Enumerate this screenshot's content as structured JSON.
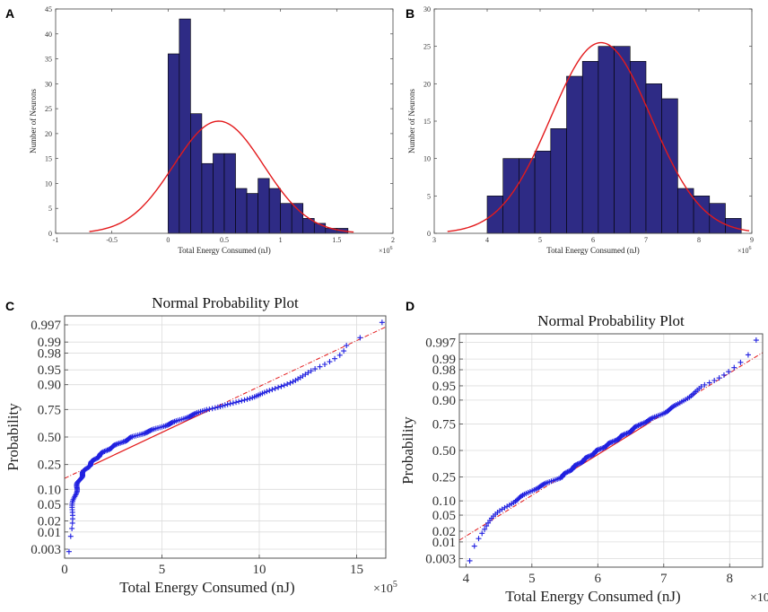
{
  "chart_data": [
    {
      "panel": "A",
      "type": "bar",
      "title": "",
      "xlabel": "Total Energy Consumed (nJ)",
      "ylabel": "Number of Neurons",
      "x_multiplier": "×10",
      "x_multiplier_exp": "6",
      "xlim": [
        -1,
        2
      ],
      "ylim": [
        0,
        45
      ],
      "xticks": [
        -1,
        -0.5,
        0,
        0.5,
        1,
        1.5,
        2
      ],
      "xtick_labels": [
        "-1",
        "-0.5",
        "0",
        "0.5",
        "1",
        "1.5",
        "2"
      ],
      "yticks": [
        0,
        5,
        10,
        15,
        20,
        25,
        30,
        35,
        40,
        45
      ],
      "bin_start": 0.0,
      "bin_width": 0.1,
      "values": [
        36,
        43,
        24,
        14,
        16,
        16,
        9,
        8,
        11,
        9,
        6,
        6,
        3,
        2,
        1,
        1
      ],
      "fit": {
        "type": "normal",
        "mean": 0.45,
        "std": 0.4,
        "peak": 22.5,
        "x_range": [
          -0.7,
          1.65
        ]
      },
      "colors": {
        "bar": "#2e2b85",
        "bar_edge": "#000000",
        "fit": "#e31a1c"
      }
    },
    {
      "panel": "B",
      "type": "bar",
      "title": "",
      "xlabel": "Total Energy Consumed (nJ)",
      "ylabel": "Number of Neurons",
      "x_multiplier": "×10",
      "x_multiplier_exp": "6",
      "xlim": [
        3,
        9
      ],
      "ylim": [
        0,
        30
      ],
      "xticks": [
        3,
        4,
        5,
        6,
        7,
        8,
        9
      ],
      "xtick_labels": [
        "3",
        "4",
        "5",
        "6",
        "7",
        "8",
        "9"
      ],
      "yticks": [
        0,
        5,
        10,
        15,
        20,
        25,
        30
      ],
      "bin_start": 4.0,
      "bin_width": 0.3,
      "values": [
        5,
        10,
        10,
        11,
        14,
        21,
        23,
        25,
        25,
        23,
        20,
        18,
        6,
        5,
        4,
        2
      ],
      "fit": {
        "type": "normal",
        "mean": 6.15,
        "std": 0.95,
        "peak": 25.5,
        "x_range": [
          3.25,
          8.95
        ]
      },
      "colors": {
        "bar": "#2e2b85",
        "bar_edge": "#000000",
        "fit": "#e31a1c"
      }
    },
    {
      "panel": "C",
      "type": "scatter",
      "title": "Normal Probability Plot",
      "xlabel": "Total Energy Consumed (nJ)",
      "ylabel": "Probability",
      "x_multiplier": "×10",
      "x_multiplier_exp": "5",
      "xlim": [
        0,
        16.5
      ],
      "xticks": [
        0,
        5,
        10,
        15
      ],
      "xtick_labels": [
        "0",
        "5",
        "10",
        "15"
      ],
      "yticks_prob": [
        0.003,
        0.01,
        0.02,
        0.05,
        0.1,
        0.25,
        0.5,
        0.75,
        0.9,
        0.95,
        0.98,
        0.99,
        0.997
      ],
      "ytick_labels": [
        "0.003",
        "0.01",
        "0.02",
        "0.05",
        "0.10",
        "0.25",
        "0.50",
        "0.75",
        "0.90",
        "0.95",
        "0.98",
        "0.99",
        "0.997"
      ],
      "n": 200,
      "quantile_anchors": {
        "p": [
          0.003,
          0.01,
          0.02,
          0.05,
          0.1,
          0.18,
          0.25,
          0.33,
          0.4,
          0.5,
          0.6,
          0.7,
          0.75,
          0.8,
          0.85,
          0.9,
          0.95,
          0.97,
          0.98,
          0.99,
          0.997
        ],
        "x": [
          0.2,
          0.3,
          0.35,
          0.45,
          0.6,
          0.9,
          1.3,
          1.8,
          2.4,
          3.5,
          5.0,
          6.5,
          7.3,
          8.8,
          10.0,
          11.3,
          12.8,
          13.7,
          14.2,
          14.5,
          16.3
        ]
      },
      "reference_line": {
        "p1": 0.25,
        "x1": 1.5,
        "p2": 0.75,
        "x2": 7.5
      },
      "colors": {
        "marker": "#2020e0",
        "line": "#e31a1c",
        "grid": "#dcdcdc"
      }
    },
    {
      "panel": "D",
      "type": "scatter",
      "title": "Normal Probability Plot",
      "xlabel": "Total Energy Consumed (nJ)",
      "ylabel": "Probability",
      "x_multiplier": "×10",
      "x_multiplier_exp": "6",
      "xlim": [
        3.9,
        8.5
      ],
      "xticks": [
        4,
        5,
        6,
        7,
        8
      ],
      "xtick_labels": [
        "4",
        "5",
        "6",
        "7",
        "8"
      ],
      "yticks_prob": [
        0.003,
        0.01,
        0.02,
        0.05,
        0.1,
        0.25,
        0.5,
        0.75,
        0.9,
        0.95,
        0.98,
        0.99,
        0.997
      ],
      "ytick_labels": [
        "0.003",
        "0.01",
        "0.02",
        "0.05",
        "0.10",
        "0.25",
        "0.50",
        "0.75",
        "0.90",
        "0.95",
        "0.98",
        "0.99",
        "0.997"
      ],
      "n": 200,
      "mean": 6.1,
      "std": 0.97,
      "quantile_anchors": {
        "p": [
          0.003,
          0.01,
          0.02,
          0.05,
          0.1,
          0.25,
          0.5,
          0.75,
          0.9,
          0.95,
          0.98,
          0.99,
          0.997
        ],
        "x": [
          4.05,
          4.15,
          4.25,
          4.45,
          4.75,
          5.45,
          6.0,
          6.65,
          7.3,
          7.6,
          8.0,
          8.2,
          8.4
        ]
      },
      "reference_line": {
        "p1": 0.25,
        "x1": 5.45,
        "p2": 0.75,
        "x2": 6.75
      },
      "colors": {
        "marker": "#2020e0",
        "line": "#e31a1c",
        "grid": "#dcdcdc"
      }
    }
  ]
}
